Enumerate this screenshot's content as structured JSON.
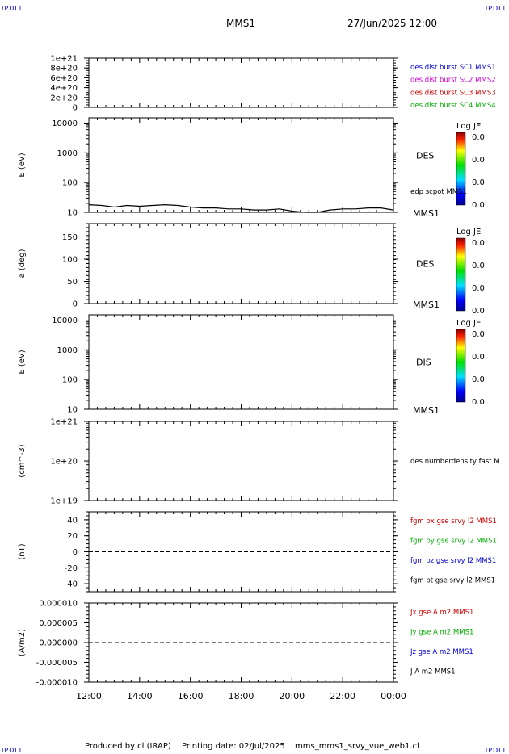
{
  "corner_label": "IPDLI",
  "header": {
    "spacecraft": "MMS1",
    "datetime": "27/Jun/2025 12:00"
  },
  "footer": {
    "producer": "Produced by cl (IRAP)",
    "printing": "Printing date: 02/Jul/2025",
    "file": "mms_mms1_srvy_vue_web1.cl"
  },
  "time_axis": [
    "12:00",
    "14:00",
    "16:00",
    "18:00",
    "20:00",
    "22:00",
    "00:00"
  ],
  "chart_data": [
    {
      "type": "line",
      "id": "p1",
      "ylabel": "",
      "ylim": [
        0,
        1e+21
      ],
      "tick_labels": [
        "0",
        "2e+20",
        "4e+20",
        "6e+20",
        "8e+20",
        "1e+21"
      ],
      "dashed_zero": true,
      "legend": [
        {
          "text": "des dist burst SC1 MMS1",
          "color": "#0000cc"
        },
        {
          "text": "des dist burst SC2 MMS2",
          "color": "#cc00cc"
        },
        {
          "text": "des dist burst SC3 MMS3",
          "color": "#cc0000"
        },
        {
          "text": "des dist burst SC4 MMS4",
          "color": "#00aa00"
        }
      ]
    },
    {
      "type": "heatmap",
      "id": "p2",
      "ylabel": "E (eV)",
      "log": true,
      "ylim": [
        10,
        15000
      ],
      "tick_labels": [
        "10",
        "100",
        "1000",
        "10000"
      ],
      "instrument": "DES",
      "spacecraft": "MMS1",
      "overlay_label": "edp scpot MMS1",
      "colorbar": {
        "title": "Log JE",
        "labels": [
          "0.0",
          "0.0",
          "0.0",
          "0.0"
        ]
      },
      "overlay_series": {
        "name": "edp scpot MMS1",
        "x_hours": [
          12.0,
          12.5,
          13.0,
          13.5,
          14.0,
          14.5,
          15.0,
          15.5,
          16.0,
          16.5,
          17.0,
          17.5,
          18.0,
          18.5,
          19.0,
          19.5,
          20.0,
          20.5,
          21.0,
          21.5,
          22.0,
          22.5,
          23.0,
          23.5,
          24.0
        ],
        "values": [
          18,
          17,
          15,
          17,
          16,
          17,
          18,
          17,
          15,
          14,
          14,
          13,
          13,
          12,
          12,
          13,
          11,
          10,
          10,
          12,
          13,
          13,
          14,
          14,
          12
        ]
      }
    },
    {
      "type": "heatmap",
      "id": "p3",
      "ylabel": "a (deg)",
      "log": false,
      "ylim": [
        0,
        180
      ],
      "tick_labels": [
        "0",
        "50",
        "100",
        "150"
      ],
      "instrument": "DES",
      "spacecraft": "MMS1",
      "colorbar": {
        "title": "Log JE",
        "labels": [
          "0.0",
          "0.0",
          "0.0",
          "0.0"
        ]
      }
    },
    {
      "type": "heatmap",
      "id": "p4",
      "ylabel": "E (eV)",
      "log": true,
      "ylim": [
        10,
        15000
      ],
      "tick_labels": [
        "10",
        "100",
        "1000",
        "10000"
      ],
      "instrument": "DIS",
      "spacecraft": "MMS1",
      "colorbar": {
        "title": "Log JE",
        "labels": [
          "0.0",
          "0.0",
          "0.0",
          "0.0"
        ]
      }
    },
    {
      "type": "line",
      "id": "p5",
      "ylabel": "(cm^-3)",
      "log": true,
      "ylim": [
        1e+19,
        1e+21
      ],
      "tick_labels": [
        "1e+19",
        "1e+20",
        "1e+21"
      ],
      "legend": [
        {
          "text": "des numberdensity fast M",
          "color": "#000000"
        }
      ]
    },
    {
      "type": "line",
      "id": "p6",
      "ylabel": "(nT)",
      "ylim": [
        -50,
        50
      ],
      "tick_labels": [
        "-40",
        "-20",
        "0",
        "20",
        "40"
      ],
      "dashed_zero": true,
      "legend": [
        {
          "text": "fgm bx gse srvy l2 MMS1",
          "color": "#cc0000"
        },
        {
          "text": "fgm by gse srvy l2 MMS1",
          "color": "#00aa00"
        },
        {
          "text": "fgm bz gse srvy l2 MMS1",
          "color": "#0000cc"
        },
        {
          "text": "fgm bt gse srvy l2 MMS1",
          "color": "#000000"
        }
      ]
    },
    {
      "type": "line",
      "id": "p7",
      "ylabel": "(A/m2)",
      "ylim": [
        -1e-05,
        1e-05
      ],
      "tick_labels": [
        "-0.000010",
        "-0.000005",
        "0.000000",
        "0.000005",
        "0.000010"
      ],
      "dashed_zero": true,
      "legend": [
        {
          "text": "Jx gse A m2 MMS1",
          "color": "#cc0000"
        },
        {
          "text": "Jy gse A m2 MMS1",
          "color": "#00aa00"
        },
        {
          "text": "Jz gse A m2 MMS1",
          "color": "#0000cc"
        },
        {
          "text": "J A m2 MMS1",
          "color": "#000000"
        }
      ]
    }
  ]
}
